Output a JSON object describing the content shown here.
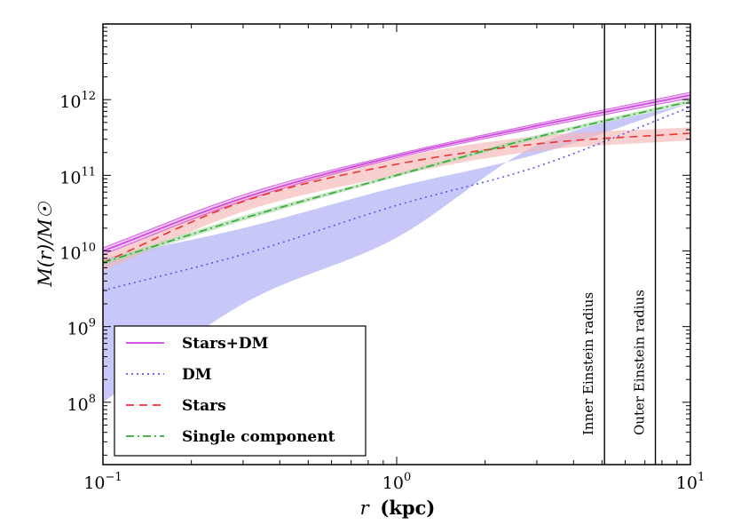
{
  "chart_data": {
    "type": "line",
    "xscale": "log",
    "yscale": "log",
    "xlim": [
      0.1,
      10
    ],
    "ylim": [
      15000000,
      10000000000000
    ],
    "x_ticks": [
      {
        "value": 0.1,
        "base": "10",
        "exp": "−1"
      },
      {
        "value": 1,
        "base": "10",
        "exp": "0"
      },
      {
        "value": 10,
        "base": "10",
        "exp": "1"
      }
    ],
    "y_ticks": [
      {
        "value": 100000000,
        "base": "10",
        "exp": "8"
      },
      {
        "value": 1000000000,
        "base": "10",
        "exp": "9"
      },
      {
        "value": 10000000000,
        "base": "10",
        "exp": "10"
      },
      {
        "value": 100000000000,
        "base": "10",
        "exp": "11"
      },
      {
        "value": 1000000000000,
        "base": "10",
        "exp": "12"
      }
    ],
    "xlabel": {
      "var": "r",
      "unit": "(kpc)"
    },
    "ylabel": "M(r)/M☉",
    "grid": false,
    "legend_position": "lower-left",
    "x": [
      0.1,
      0.3,
      1,
      3,
      10
    ],
    "series": [
      {
        "name": "Stars+DM",
        "style": "solid",
        "color": "#cc44dd",
        "values": [
          10000000000,
          50000000000,
          180000000000,
          450000000000,
          1150000000000
        ],
        "band_lower": [
          9000000000,
          46000000000,
          170000000000,
          420000000000,
          1050000000000
        ],
        "band_upper": [
          11000000000,
          55000000000,
          190000000000,
          480000000000,
          1250000000000
        ],
        "band_color": "#e6a8ef"
      },
      {
        "name": "DM",
        "style": "dotted",
        "color": "#5a5aee",
        "values": [
          3000000000,
          9000000000,
          40000000000,
          130000000000,
          800000000000
        ],
        "band_lower": [
          100000000,
          2000000000,
          15000000000,
          250000000000,
          900000000000
        ],
        "band_upper": [
          8000000000,
          20000000000,
          70000000000,
          190000000000,
          900000000000
        ],
        "band_color": "#a9a9f5"
      },
      {
        "name": "Stars",
        "style": "dashed",
        "color": "#ee3333",
        "values": [
          7000000000,
          45000000000,
          140000000000,
          260000000000,
          360000000000
        ],
        "band_lower": [
          5500000000,
          33000000000,
          100000000000,
          210000000000,
          290000000000
        ],
        "band_upper": [
          9000000000,
          50000000000,
          170000000000,
          330000000000,
          430000000000
        ],
        "band_color": "#f6b7b7"
      },
      {
        "name": "Single component",
        "style": "dashdot",
        "color": "#33a833",
        "values": [
          7000000000,
          27000000000,
          100000000000,
          320000000000,
          950000000000
        ],
        "band_lower": [
          6500000000,
          25000000000,
          95000000000,
          300000000000,
          900000000000
        ],
        "band_upper": [
          7500000000,
          29000000000,
          105000000000,
          340000000000,
          1000000000000
        ],
        "band_color": "#a8d8a8"
      }
    ],
    "vertical_lines": [
      {
        "x": 5.1,
        "label": "Inner Einstein radius"
      },
      {
        "x": 7.6,
        "label": "Outer Einstein radius"
      }
    ]
  }
}
